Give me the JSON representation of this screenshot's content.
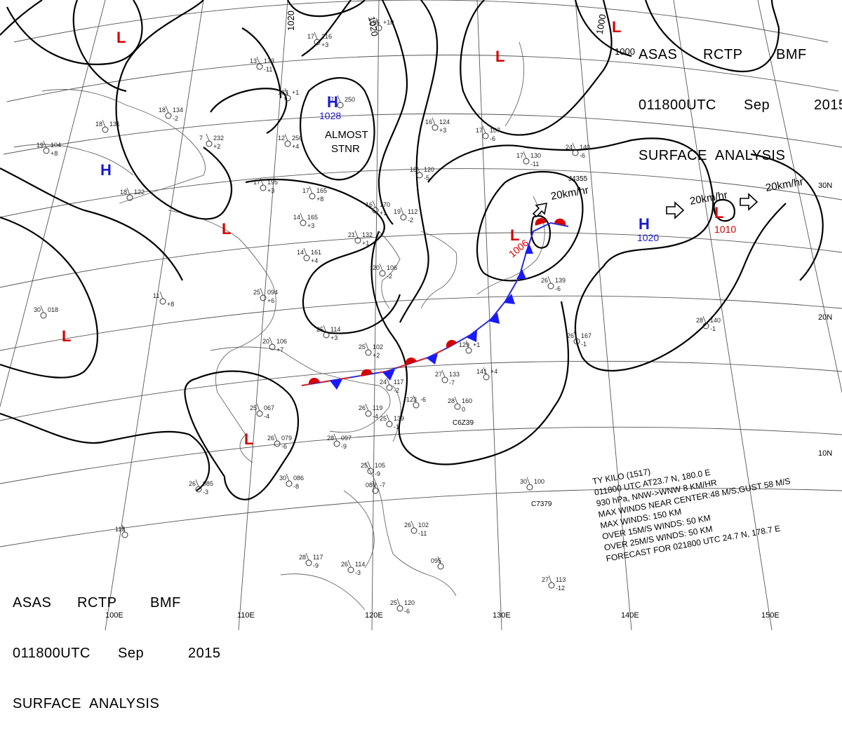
{
  "header": {
    "agency": "ASAS",
    "station": "RCTP",
    "office": "BMF",
    "time": "011800UTC",
    "month": "Sep",
    "year": "2015",
    "product": "SURFACE  ANALYSIS"
  },
  "longitudes": [
    "100E",
    "110E",
    "120E",
    "130E",
    "140E",
    "150E"
  ],
  "latitudes": [
    "30N",
    "20N",
    "10N"
  ],
  "isobar_labels": [
    "1020",
    "1020",
    "1000",
    "1000"
  ],
  "highs": [
    {
      "symbol": "H",
      "value": "1028"
    },
    {
      "symbol": "H",
      "value": ""
    },
    {
      "symbol": "H",
      "value": "1020"
    }
  ],
  "lows": [
    {
      "symbol": "L",
      "value": ""
    },
    {
      "symbol": "L",
      "value": ""
    },
    {
      "symbol": "L",
      "value": ""
    },
    {
      "symbol": "L",
      "value": ""
    },
    {
      "symbol": "L",
      "value": ""
    },
    {
      "symbol": "L",
      "value": "1006"
    },
    {
      "symbol": "L",
      "value": "1010"
    },
    {
      "symbol": "L",
      "value": ""
    }
  ],
  "annotations": {
    "almost": "ALMOST",
    "stnr": "STNR",
    "motion1": "20km/hr",
    "motion2": "20km/hr",
    "motion3": "20km/hr"
  },
  "typhoon_info": [
    "TY  KILO  (1517)",
    "011800 UTC  AT23.7 N, 180.0 E",
    "930 hPa, NNW->WNW  8 KM/HR",
    "MAX WINDS NEAR CENTER:48 M/S,GUST 58 M/S",
    "MAX WINDS: 150 KM",
    "OVER 15M/S WINDS: 50 KM",
    "OVER 25M/S WINDS: 50 KM",
    "FORECAST FOR 021800 UTC 24.7 N, 178.7 E"
  ],
  "station_plots": [
    {
      "t": "17",
      "p": "216",
      "dp": "+3"
    },
    {
      "t": "195",
      "p": "+10",
      "dp": ""
    },
    {
      "t": "13",
      "p": "173",
      "dp": "-11"
    },
    {
      "t": "7",
      "p": "250",
      "dp": ""
    },
    {
      "t": "183",
      "p": "+1",
      "dp": ""
    },
    {
      "t": "7",
      "p": "232",
      "dp": "+2"
    },
    {
      "t": "12",
      "p": "250",
      "dp": "+4"
    },
    {
      "t": "18",
      "p": "134",
      "dp": "-2"
    },
    {
      "t": "18",
      "p": "131",
      "dp": ""
    },
    {
      "t": "19",
      "p": "104",
      "dp": "+8"
    },
    {
      "t": "18",
      "p": "122",
      "dp": ""
    },
    {
      "t": "17",
      "p": "195",
      "dp": "+3"
    },
    {
      "t": "17",
      "p": "165",
      "dp": "+8"
    },
    {
      "t": "14",
      "p": "165",
      "dp": "+3"
    },
    {
      "t": "16",
      "p": "170",
      "dp": "+1"
    },
    {
      "t": "19",
      "p": "112",
      "dp": "-2"
    },
    {
      "t": "21",
      "p": "132",
      "dp": "+1"
    },
    {
      "t": "14",
      "p": "161",
      "dp": "+4"
    },
    {
      "t": "25",
      "p": "094",
      "dp": "+6"
    },
    {
      "t": "11",
      "p": "",
      "dp": "+8"
    },
    {
      "t": "30",
      "p": "018",
      "dp": ""
    },
    {
      "t": "20",
      "p": "106",
      "dp": "-2"
    },
    {
      "t": "25",
      "p": "114",
      "dp": "+3"
    },
    {
      "t": "20",
      "p": "106",
      "dp": "+7"
    },
    {
      "t": "25",
      "p": "102",
      "dp": "+2"
    },
    {
      "t": "24",
      "p": "117",
      "dp": "-2"
    },
    {
      "t": "25",
      "p": "067",
      "dp": "-4"
    },
    {
      "t": "26",
      "p": "079",
      "dp": "-6"
    },
    {
      "t": "28",
      "p": "097",
      "dp": "-9"
    },
    {
      "t": "30",
      "p": "086",
      "dp": "-8"
    },
    {
      "t": "26",
      "p": "085",
      "dp": "-3"
    },
    {
      "t": "16",
      "p": "124",
      "dp": "+3"
    },
    {
      "t": "17",
      "p": "107",
      "dp": "-6"
    },
    {
      "t": "18",
      "p": "120",
      "dp": "-5"
    },
    {
      "t": "17",
      "p": "130",
      "dp": "-11"
    },
    {
      "t": "24",
      "p": "140",
      "dp": "-6"
    },
    {
      "t": "26",
      "p": "139",
      "dp": "-6"
    },
    {
      "t": "28",
      "p": "140",
      "dp": "-1"
    },
    {
      "t": "26",
      "p": "167",
      "dp": "-1"
    },
    {
      "t": "129",
      "p": "+1",
      "dp": ""
    },
    {
      "t": "27",
      "p": "133",
      "dp": "-7"
    },
    {
      "t": "141",
      "p": "+4",
      "dp": ""
    },
    {
      "t": "123",
      "p": "-6",
      "dp": ""
    },
    {
      "t": "28",
      "p": "160",
      "dp": "0"
    },
    {
      "t": "26",
      "p": "119",
      "dp": "-4"
    },
    {
      "t": "25",
      "p": "139",
      "dp": "-1"
    },
    {
      "t": "25",
      "p": "105",
      "dp": "-9"
    },
    {
      "t": "089",
      "p": "-7",
      "dp": ""
    },
    {
      "t": "30",
      "p": "100",
      "dp": ""
    },
    {
      "t": "26",
      "p": "102",
      "dp": "-11"
    },
    {
      "t": "28",
      "p": "117",
      "dp": "-9"
    },
    {
      "t": "26",
      "p": "114",
      "dp": "-3"
    },
    {
      "t": "095",
      "p": "",
      "dp": ""
    },
    {
      "t": "25",
      "p": "120",
      "dp": "-6"
    },
    {
      "t": "27",
      "p": "113",
      "dp": "-12"
    },
    {
      "t": "118",
      "p": "",
      "dp": ""
    }
  ],
  "station_codes": [
    "C6Z39",
    "C7379",
    "J4355"
  ]
}
